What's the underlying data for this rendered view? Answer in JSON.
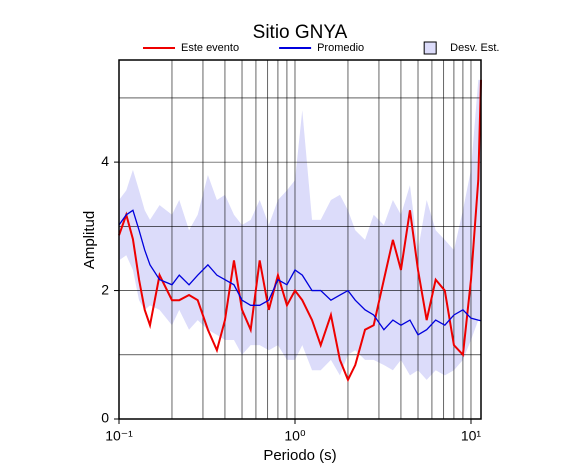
{
  "chart_data": {
    "type": "line",
    "title": "Sitio GNYA",
    "xlabel": "Periodo (s)",
    "ylabel": "Amplitud",
    "xscale": "log",
    "xlim": [
      0.1,
      11.4
    ],
    "ylim": [
      0,
      5.59
    ],
    "xticks": [
      {
        "value": 0.1,
        "label": "10⁻¹"
      },
      {
        "value": 1,
        "label": "10⁰"
      },
      {
        "value": 10,
        "label": "10¹"
      }
    ],
    "yticks": [
      0,
      2,
      4
    ],
    "xgrid": [
      0.2,
      0.3,
      0.4,
      0.5,
      0.6,
      0.7,
      0.8,
      0.9,
      1,
      2,
      3,
      4,
      5,
      6,
      7,
      8,
      9,
      10
    ],
    "ygrid": [
      1,
      2,
      3,
      4,
      5
    ],
    "legend": "top",
    "x": [
      0.1,
      0.11,
      0.12,
      0.13,
      0.14,
      0.15,
      0.17,
      0.2,
      0.22,
      0.25,
      0.28,
      0.32,
      0.36,
      0.4,
      0.45,
      0.5,
      0.56,
      0.63,
      0.71,
      0.8,
      0.9,
      1.0,
      1.1,
      1.25,
      1.4,
      1.6,
      1.8,
      2.0,
      2.2,
      2.5,
      2.8,
      3.2,
      3.6,
      4.0,
      4.5,
      5.0,
      5.6,
      6.3,
      7.1,
      8.0,
      9.0,
      10,
      11,
      11.4
    ],
    "series": [
      {
        "name": "Este evento",
        "color": "#ee0000",
        "values": [
          2.86,
          3.18,
          2.8,
          2.17,
          1.7,
          1.46,
          2.24,
          1.85,
          1.85,
          1.93,
          1.85,
          1.39,
          1.07,
          1.54,
          2.47,
          1.7,
          1.39,
          2.47,
          1.7,
          2.24,
          1.77,
          2.0,
          1.85,
          1.54,
          1.15,
          1.62,
          0.92,
          0.61,
          0.84,
          1.39,
          1.46,
          2.17,
          2.79,
          2.32,
          3.25,
          2.32,
          1.54,
          2.17,
          2.0,
          1.15,
          1.0,
          2.17,
          3.72,
          5.28
        ]
      },
      {
        "name": "Promedio",
        "color": "#0000dd",
        "values": [
          3.02,
          3.18,
          3.25,
          2.94,
          2.63,
          2.4,
          2.17,
          2.09,
          2.24,
          2.09,
          2.24,
          2.4,
          2.24,
          2.17,
          2.09,
          1.85,
          1.77,
          1.77,
          1.85,
          2.17,
          2.09,
          2.32,
          2.24,
          2.0,
          2.0,
          1.85,
          1.93,
          2.0,
          1.85,
          1.7,
          1.62,
          1.39,
          1.54,
          1.46,
          1.54,
          1.31,
          1.39,
          1.54,
          1.46,
          1.62,
          1.7,
          1.57,
          1.54,
          1.53
        ]
      }
    ],
    "band": {
      "name": "Desv. Est.",
      "color": "#dcdcfa",
      "upper": [
        3.41,
        3.56,
        3.88,
        3.56,
        3.25,
        3.1,
        3.33,
        3.18,
        3.41,
        2.94,
        3.18,
        3.8,
        3.41,
        3.49,
        3.18,
        3.02,
        3.1,
        3.41,
        3.02,
        3.41,
        3.56,
        3.72,
        4.81,
        3.1,
        3.1,
        3.41,
        3.49,
        3.25,
        2.94,
        2.79,
        3.18,
        3.02,
        3.41,
        3.18,
        3.64,
        2.63,
        3.41,
        2.94,
        2.79,
        2.63,
        3.25,
        3.88,
        5.28,
        5.28
      ],
      "lower": [
        2.47,
        2.55,
        2.32,
        1.85,
        1.7,
        1.77,
        1.7,
        1.46,
        1.7,
        1.39,
        1.54,
        1.39,
        1.31,
        1.23,
        1.23,
        1.0,
        1.15,
        1.15,
        1.07,
        1.15,
        0.92,
        0.92,
        1.15,
        0.76,
        0.76,
        0.92,
        0.68,
        1.0,
        1.07,
        0.92,
        0.92,
        0.84,
        0.76,
        0.92,
        0.68,
        0.76,
        0.61,
        0.76,
        0.68,
        0.76,
        0.92,
        1.23,
        1.54,
        1.54
      ]
    }
  }
}
